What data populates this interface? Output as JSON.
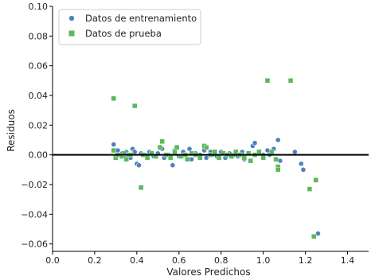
{
  "chart_data": {
    "type": "scatter",
    "xlabel": "Valores Predichos",
    "ylabel": "Residuos",
    "xlim": [
      0.0,
      1.5
    ],
    "ylim": [
      -0.065,
      0.1
    ],
    "xticks": [
      "0.0",
      "0.2",
      "0.4",
      "0.6",
      "0.8",
      "1.0",
      "1.2",
      "1.4"
    ],
    "yticks": [
      "−0.06",
      "−0.04",
      "−0.02",
      "0.00",
      "0.02",
      "0.04",
      "0.06",
      "0.08",
      "0.10"
    ],
    "xtick_values": [
      0.0,
      0.2,
      0.4,
      0.6,
      0.8,
      1.0,
      1.2,
      1.4
    ],
    "ytick_values": [
      -0.06,
      -0.04,
      -0.02,
      0.0,
      0.02,
      0.04,
      0.06,
      0.08,
      0.1
    ],
    "hline_y": 0.0,
    "hline_xrange": [
      0.0,
      1.5
    ],
    "legend_position": "top-left",
    "series": [
      {
        "name": "Datos de entrenamiento",
        "marker": "circle",
        "color": "#4e81bd",
        "points": [
          [
            0.29,
            0.007
          ],
          [
            0.3,
            -0.002
          ],
          [
            0.31,
            0.003
          ],
          [
            0.32,
            0.0
          ],
          [
            0.33,
            0.001
          ],
          [
            0.34,
            -0.001
          ],
          [
            0.35,
            0.002
          ],
          [
            0.36,
            0.0
          ],
          [
            0.37,
            -0.002
          ],
          [
            0.38,
            0.004
          ],
          [
            0.39,
            0.002
          ],
          [
            0.4,
            -0.006
          ],
          [
            0.41,
            -0.007
          ],
          [
            0.42,
            0.001
          ],
          [
            0.44,
            0.0
          ],
          [
            0.46,
            0.002
          ],
          [
            0.48,
            -0.001
          ],
          [
            0.5,
            0.001
          ],
          [
            0.52,
            0.004
          ],
          [
            0.53,
            -0.002
          ],
          [
            0.55,
            0.0
          ],
          [
            0.57,
            -0.007
          ],
          [
            0.58,
            0.003
          ],
          [
            0.6,
            -0.001
          ],
          [
            0.62,
            0.002
          ],
          [
            0.63,
            0.0
          ],
          [
            0.65,
            0.004
          ],
          [
            0.66,
            -0.003
          ],
          [
            0.68,
            0.001
          ],
          [
            0.7,
            0.0
          ],
          [
            0.72,
            0.003
          ],
          [
            0.73,
            -0.002
          ],
          [
            0.75,
            0.002
          ],
          [
            0.77,
            0.0
          ],
          [
            0.78,
            -0.001
          ],
          [
            0.8,
            0.002
          ],
          [
            0.82,
            -0.002
          ],
          [
            0.84,
            0.001
          ],
          [
            0.86,
            0.0
          ],
          [
            0.88,
            -0.001
          ],
          [
            0.9,
            0.002
          ],
          [
            0.91,
            -0.003
          ],
          [
            0.93,
            0.001
          ],
          [
            0.95,
            0.006
          ],
          [
            0.96,
            0.008
          ],
          [
            0.98,
            0.002
          ],
          [
            1.0,
            0.0
          ],
          [
            1.02,
            0.003
          ],
          [
            1.03,
            0.0
          ],
          [
            1.05,
            0.004
          ],
          [
            1.07,
            0.01
          ],
          [
            1.08,
            -0.004
          ],
          [
            1.15,
            0.002
          ],
          [
            1.18,
            -0.006
          ],
          [
            1.19,
            -0.01
          ],
          [
            1.26,
            -0.053
          ]
        ]
      },
      {
        "name": "Datos de prueba",
        "marker": "square",
        "color": "#5cb85c",
        "points": [
          [
            0.29,
            0.038
          ],
          [
            0.29,
            0.003
          ],
          [
            0.3,
            -0.002
          ],
          [
            0.31,
            0.0
          ],
          [
            0.33,
            -0.001
          ],
          [
            0.34,
            0.001
          ],
          [
            0.35,
            -0.003
          ],
          [
            0.37,
            0.0
          ],
          [
            0.39,
            0.033
          ],
          [
            0.42,
            -0.022
          ],
          [
            0.43,
            0.0
          ],
          [
            0.45,
            -0.002
          ],
          [
            0.47,
            0.001
          ],
          [
            0.49,
            -0.001
          ],
          [
            0.51,
            0.005
          ],
          [
            0.52,
            0.009
          ],
          [
            0.54,
            0.0
          ],
          [
            0.56,
            -0.002
          ],
          [
            0.58,
            0.002
          ],
          [
            0.59,
            0.005
          ],
          [
            0.61,
            -0.001
          ],
          [
            0.63,
            0.0
          ],
          [
            0.64,
            -0.003
          ],
          [
            0.66,
            0.001
          ],
          [
            0.68,
            0.0
          ],
          [
            0.7,
            -0.002
          ],
          [
            0.72,
            0.006
          ],
          [
            0.73,
            0.005
          ],
          [
            0.75,
            0.0
          ],
          [
            0.77,
            0.002
          ],
          [
            0.79,
            -0.002
          ],
          [
            0.81,
            0.001
          ],
          [
            0.83,
            0.0
          ],
          [
            0.85,
            -0.001
          ],
          [
            0.87,
            0.002
          ],
          [
            0.89,
            0.0
          ],
          [
            0.91,
            -0.002
          ],
          [
            0.93,
            0.001
          ],
          [
            0.94,
            -0.004
          ],
          [
            0.96,
            0.0
          ],
          [
            0.98,
            0.002
          ],
          [
            1.0,
            -0.002
          ],
          [
            1.02,
            0.05
          ],
          [
            1.04,
            0.002
          ],
          [
            1.06,
            -0.003
          ],
          [
            1.07,
            -0.008
          ],
          [
            1.07,
            -0.01
          ],
          [
            1.13,
            0.05
          ],
          [
            1.22,
            -0.023
          ],
          [
            1.24,
            -0.055
          ],
          [
            1.25,
            -0.017
          ]
        ]
      }
    ]
  }
}
